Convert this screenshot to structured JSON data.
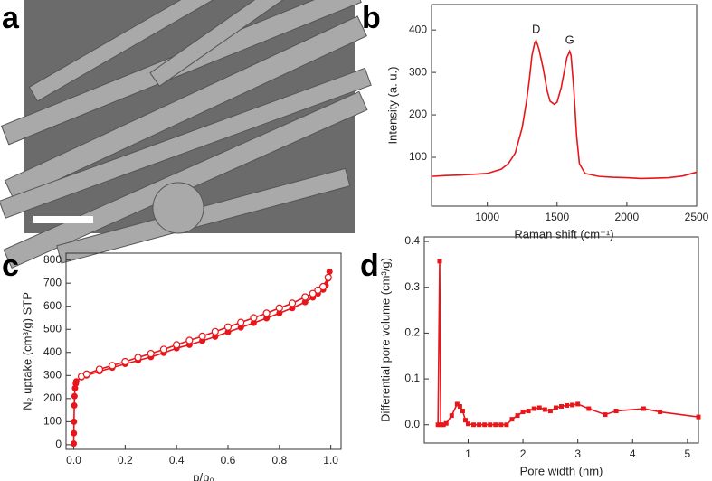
{
  "panel_labels": [
    "a",
    "b",
    "c",
    "d"
  ],
  "chart_data": [
    {
      "type": "line",
      "xlabel": "Raman shift (cm⁻¹)",
      "ylabel": "Intensity (a. u.)",
      "annotations": [
        "D",
        "G"
      ],
      "xlim": [
        600,
        2500
      ],
      "ylim": [
        -15,
        460
      ],
      "xticks": [
        1000,
        1500,
        2000,
        2500
      ],
      "yticks": [
        100,
        200,
        300,
        400
      ],
      "series": [
        {
          "color": "#e8161b",
          "marker": "none",
          "x": [
            600,
            700,
            800,
            900,
            1000,
            1100,
            1150,
            1200,
            1250,
            1280,
            1300,
            1320,
            1340,
            1350,
            1370,
            1400,
            1430,
            1450,
            1480,
            1500,
            1530,
            1550,
            1570,
            1590,
            1600,
            1620,
            1640,
            1660,
            1700,
            1800,
            1900,
            2000,
            2100,
            2200,
            2300,
            2400,
            2500
          ],
          "values": [
            55,
            57,
            58,
            60,
            62,
            72,
            85,
            110,
            170,
            230,
            280,
            340,
            370,
            375,
            355,
            310,
            255,
            232,
            225,
            230,
            265,
            300,
            335,
            350,
            340,
            260,
            150,
            85,
            62,
            55,
            53,
            52,
            50,
            51,
            52,
            56,
            65
          ]
        }
      ]
    },
    {
      "type": "line",
      "xlabel": "p/p₀",
      "ylabel": "N₂ uptake (cm³/g) STP",
      "xlim": [
        -0.03,
        1.04
      ],
      "ylim": [
        -20,
        830
      ],
      "xticks": [
        {
          "value": 0,
          "label": "0.0"
        },
        0.2,
        0.4,
        0.6,
        0.8,
        {
          "value": 1,
          "label": "1.0"
        }
      ],
      "yticks": [
        0,
        100,
        200,
        300,
        400,
        500,
        600,
        700,
        800
      ],
      "series": [
        {
          "color": "#e8161b",
          "marker": "circle",
          "x": [
            0,
            0.0005,
            0.001,
            0.002,
            0.003,
            0.005,
            0.008,
            0.01,
            0.03,
            0.05,
            0.1,
            0.15,
            0.2,
            0.25,
            0.3,
            0.35,
            0.4,
            0.45,
            0.5,
            0.55,
            0.6,
            0.65,
            0.7,
            0.75,
            0.8,
            0.85,
            0.9,
            0.93,
            0.95,
            0.97,
            0.98,
            0.99,
            0.995
          ],
          "values": [
            5,
            50,
            100,
            170,
            210,
            245,
            265,
            275,
            292,
            300,
            318,
            334,
            350,
            365,
            380,
            398,
            418,
            433,
            450,
            468,
            488,
            508,
            528,
            548,
            570,
            592,
            618,
            638,
            655,
            672,
            690,
            720,
            750
          ]
        },
        {
          "color": "#e8161b",
          "marker": "circle-open",
          "x": [
            0.03,
            0.05,
            0.1,
            0.15,
            0.2,
            0.25,
            0.3,
            0.35,
            0.4,
            0.45,
            0.5,
            0.55,
            0.6,
            0.65,
            0.7,
            0.75,
            0.8,
            0.85,
            0.9,
            0.93,
            0.95,
            0.97,
            0.99
          ],
          "values": [
            296,
            306,
            327,
            343,
            360,
            378,
            395,
            413,
            433,
            452,
            470,
            490,
            510,
            530,
            550,
            570,
            592,
            613,
            640,
            655,
            670,
            685,
            725
          ]
        }
      ]
    },
    {
      "type": "line",
      "xlabel": "Pore width (nm)",
      "ylabel": "Differential pore volume (cm³/g)",
      "xlim": [
        0.2,
        5.2
      ],
      "ylim": [
        -0.04,
        0.41
      ],
      "xticks": [
        1,
        2,
        3,
        4,
        5
      ],
      "yticks": [
        {
          "value": 0,
          "label": "0.0"
        },
        0.1,
        0.2,
        0.3,
        0.4
      ],
      "series": [
        {
          "color": "#e8161b",
          "marker": "square",
          "x": [
            0.45,
            0.48,
            0.5,
            0.55,
            0.6,
            0.7,
            0.8,
            0.85,
            0.9,
            0.95,
            1.0,
            1.1,
            1.2,
            1.3,
            1.4,
            1.5,
            1.6,
            1.7,
            1.8,
            1.9,
            2.0,
            2.1,
            2.2,
            2.3,
            2.4,
            2.5,
            2.6,
            2.7,
            2.8,
            2.9,
            3.0,
            3.2,
            3.5,
            3.7,
            4.2,
            4.5,
            5.2
          ],
          "values": [
            0.0,
            0.357,
            0.0,
            0.0,
            0.003,
            0.02,
            0.045,
            0.04,
            0.03,
            0.01,
            0.002,
            0.0,
            0.0,
            0.0,
            0.0,
            0.0,
            0.0,
            0.0,
            0.012,
            0.02,
            0.028,
            0.03,
            0.035,
            0.037,
            0.033,
            0.03,
            0.037,
            0.04,
            0.042,
            0.043,
            0.045,
            0.035,
            0.022,
            0.03,
            0.035,
            0.028,
            0.017
          ]
        }
      ]
    }
  ]
}
